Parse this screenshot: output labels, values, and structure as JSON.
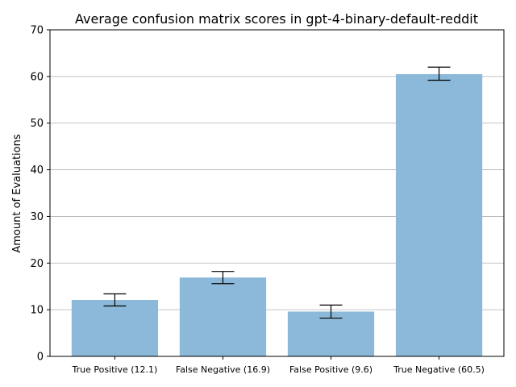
{
  "chart_data": {
    "type": "bar",
    "title": "Average confusion matrix scores in gpt-4-binary-default-reddit",
    "xlabel": "",
    "ylabel": "Amount of Evaluations",
    "categories": [
      "True Positive (12.1)",
      "False Negative (16.9)",
      "False Positive (9.6)",
      "True Negative (60.5)"
    ],
    "values": [
      12.1,
      16.9,
      9.6,
      60.5
    ],
    "error_low": [
      10.8,
      15.6,
      8.2,
      59.2
    ],
    "error_high": [
      13.4,
      18.2,
      11.0,
      62.0
    ],
    "ylim": [
      0,
      70
    ],
    "yticks": [
      0,
      10,
      20,
      30,
      40,
      50,
      60,
      70
    ],
    "grid": "horizontal",
    "bar_color": "#8cb9d9",
    "error_color": "#000000"
  }
}
